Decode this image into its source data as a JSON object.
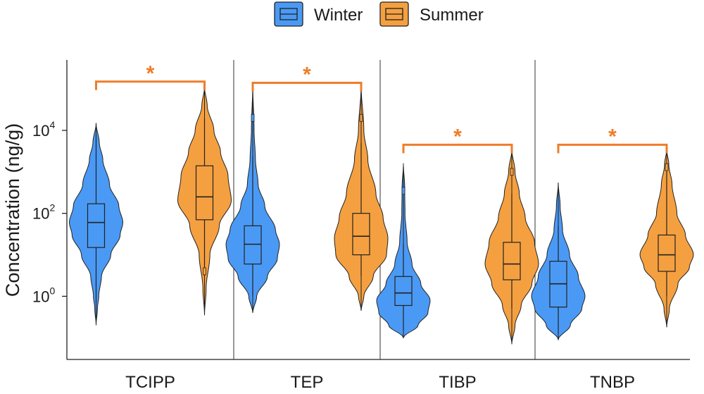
{
  "chart_data": {
    "type": "violin",
    "categories": [
      "TCIPP",
      "TEP",
      "TIBP",
      "TNBP"
    ],
    "ylabel": "Concentration (ng/g)",
    "yscale": "log10",
    "ylim": [
      0.03,
      500000
    ],
    "yticks": [
      {
        "value": 1,
        "base": "10",
        "exp": "0"
      },
      {
        "value": 100,
        "base": "10",
        "exp": "2"
      },
      {
        "value": 10000,
        "base": "10",
        "exp": "4"
      }
    ],
    "legend_position": "top",
    "series": [
      {
        "name": "Winter",
        "color": "#4a9af5",
        "stats": [
          {
            "min": 0.2,
            "q1": 15,
            "median": 60,
            "q3": 170,
            "max": 15000,
            "whisker_low": 0.7,
            "whisker_high": 8000,
            "outliers": []
          },
          {
            "min": 0.4,
            "q1": 6,
            "median": 18,
            "q3": 50,
            "max": 130000,
            "whisker_low": 1,
            "whisker_high": 2500,
            "outliers": [
              20000
            ]
          },
          {
            "min": 0.1,
            "q1": 0.6,
            "median": 1.2,
            "q3": 3,
            "max": 1600,
            "whisker_low": 0.15,
            "whisker_high": 18,
            "outliers": [
              350
            ]
          },
          {
            "min": 0.09,
            "q1": 0.55,
            "median": 2,
            "q3": 7,
            "max": 550,
            "whisker_low": 0.12,
            "whisker_high": 50,
            "outliers": []
          }
        ],
        "shape": [
          [
            [
              0.2,
              0
            ],
            [
              0.5,
              0.05
            ],
            [
              1,
              0.1
            ],
            [
              3,
              0.2
            ],
            [
              10,
              0.55
            ],
            [
              30,
              0.9
            ],
            [
              60,
              1
            ],
            [
              150,
              0.85
            ],
            [
              500,
              0.5
            ],
            [
              2000,
              0.25
            ],
            [
              5000,
              0.12
            ],
            [
              15000,
              0
            ]
          ],
          [
            [
              0.4,
              0
            ],
            [
              1,
              0.15
            ],
            [
              3,
              0.55
            ],
            [
              8,
              0.92
            ],
            [
              18,
              1
            ],
            [
              40,
              0.85
            ],
            [
              150,
              0.45
            ],
            [
              500,
              0.2
            ],
            [
              2000,
              0.1
            ],
            [
              10000,
              0.05
            ],
            [
              130000,
              0
            ]
          ],
          [
            [
              0.1,
              0
            ],
            [
              0.2,
              0.55
            ],
            [
              0.4,
              0.92
            ],
            [
              0.8,
              1
            ],
            [
              2,
              0.65
            ],
            [
              6,
              0.32
            ],
            [
              20,
              0.14
            ],
            [
              100,
              0.06
            ],
            [
              400,
              0.05
            ],
            [
              1600,
              0
            ]
          ],
          [
            [
              0.09,
              0
            ],
            [
              0.2,
              0.45
            ],
            [
              0.5,
              0.88
            ],
            [
              1,
              1
            ],
            [
              3,
              0.75
            ],
            [
              10,
              0.42
            ],
            [
              40,
              0.16
            ],
            [
              150,
              0.07
            ],
            [
              550,
              0
            ]
          ]
        ]
      },
      {
        "name": "Summer",
        "color": "#f5a040",
        "stats": [
          {
            "min": 0.35,
            "q1": 70,
            "median": 250,
            "q3": 1400,
            "max": 110000,
            "whisker_low": 3,
            "whisker_high": 20000,
            "outliers": [
              4
            ]
          },
          {
            "min": 0.45,
            "q1": 10,
            "median": 28,
            "q3": 100,
            "max": 120000,
            "whisker_low": 3,
            "whisker_high": 5000,
            "outliers": [
              20000
            ]
          },
          {
            "min": 0.07,
            "q1": 2.5,
            "median": 6,
            "q3": 20,
            "max": 3500,
            "whisker_low": 0.5,
            "whisker_high": 300,
            "outliers": [
              1000
            ]
          },
          {
            "min": 0.18,
            "q1": 4,
            "median": 10,
            "q3": 30,
            "max": 3500,
            "whisker_low": 1,
            "whisker_high": 1000,
            "outliers": [
              1300
            ]
          }
        ],
        "shape": [
          [
            [
              0.35,
              0
            ],
            [
              1.5,
              0.06
            ],
            [
              10,
              0.2
            ],
            [
              50,
              0.55
            ],
            [
              200,
              1
            ],
            [
              800,
              0.88
            ],
            [
              3000,
              0.6
            ],
            [
              10000,
              0.35
            ],
            [
              40000,
              0.1
            ],
            [
              110000,
              0
            ]
          ],
          [
            [
              0.45,
              0
            ],
            [
              1,
              0.1
            ],
            [
              3,
              0.45
            ],
            [
              10,
              0.95
            ],
            [
              25,
              1
            ],
            [
              80,
              0.82
            ],
            [
              300,
              0.55
            ],
            [
              2000,
              0.25
            ],
            [
              10000,
              0.1
            ],
            [
              120000,
              0
            ]
          ],
          [
            [
              0.07,
              0
            ],
            [
              0.2,
              0.12
            ],
            [
              0.6,
              0.35
            ],
            [
              2,
              0.75
            ],
            [
              6,
              1
            ],
            [
              20,
              0.85
            ],
            [
              80,
              0.5
            ],
            [
              300,
              0.28
            ],
            [
              1000,
              0.12
            ],
            [
              3500,
              0
            ]
          ],
          [
            [
              0.18,
              0
            ],
            [
              0.5,
              0.1
            ],
            [
              2,
              0.42
            ],
            [
              5,
              0.85
            ],
            [
              10,
              1
            ],
            [
              30,
              0.7
            ],
            [
              100,
              0.38
            ],
            [
              500,
              0.2
            ],
            [
              1500,
              0.08
            ],
            [
              3500,
              0
            ]
          ]
        ]
      }
    ],
    "significance": [
      {
        "category": "TCIPP",
        "label": "*",
        "at": 150000
      },
      {
        "category": "TEP",
        "label": "*",
        "at": 140000
      },
      {
        "category": "TIBP",
        "label": "*",
        "at": 4500
      },
      {
        "category": "TNBP",
        "label": "*",
        "at": 4500
      }
    ],
    "significance_color": "#ee7d2a"
  }
}
